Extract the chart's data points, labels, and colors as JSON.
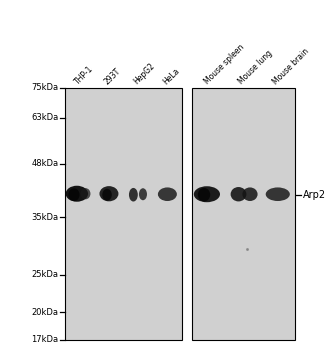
{
  "lane_labels": [
    "THP-1",
    "293T",
    "HepG2",
    "HeLa",
    "Mouse spleen",
    "Mouse lung",
    "Mouse brain"
  ],
  "mw_labels": [
    "75kDa",
    "63kDa",
    "48kDa",
    "35kDa",
    "25kDa",
    "20kDa",
    "17kDa"
  ],
  "mw_positions": [
    75,
    63,
    48,
    35,
    25,
    20,
    17
  ],
  "band_label": "Arp2",
  "bg_color": "#d0d0d0",
  "band_color": "#1a1a1a",
  "border_color": "#000000",
  "white": "#ffffff"
}
